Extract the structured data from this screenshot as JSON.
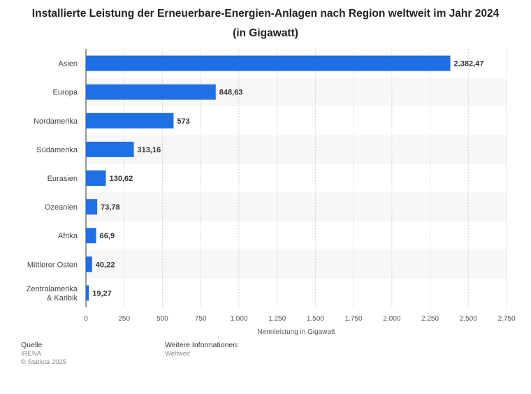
{
  "chart_data": {
    "type": "bar",
    "orientation": "horizontal",
    "title": "Installierte Leistung der Erneuerbare-Energien-Anlagen nach Region weltweit im Jahr 2024 (in Gigawatt)",
    "categories": [
      "Asien",
      "Europa",
      "Nordamerika",
      "Südamerika",
      "Eurasien",
      "Ozeanien",
      "Afrika",
      "Mittlerer Osten",
      "Zentralamerika & Karibik"
    ],
    "values": [
      2382.47,
      848.63,
      573,
      313.16,
      130.62,
      73.78,
      66.9,
      40.22,
      19.27
    ],
    "value_labels": [
      "2.382,47",
      "848,63",
      "573",
      "313,16",
      "130,62",
      "73,78",
      "66,9",
      "40,22",
      "19,27"
    ],
    "xlabel": "Nennleistung in Gigawatt",
    "ylabel": "",
    "xlim": [
      0,
      2750
    ],
    "x_ticks": [
      0,
      250,
      500,
      750,
      1000,
      1250,
      1500,
      1750,
      2000,
      2250,
      2500,
      2750
    ],
    "x_tick_labels": [
      "0",
      "250",
      "500",
      "750",
      "1.000",
      "1.250",
      "1.500",
      "1.750",
      "2.000",
      "2.250",
      "2.500",
      "2.750"
    ],
    "grid": true,
    "legend": "none",
    "bar_color": "#1f6fe5"
  },
  "footer": {
    "source_heading": "Quelle",
    "source_lines": [
      "IRENA",
      "© Statista 2025"
    ],
    "info_heading": "Weitere Informationen:",
    "info_text": "Weltweit"
  }
}
